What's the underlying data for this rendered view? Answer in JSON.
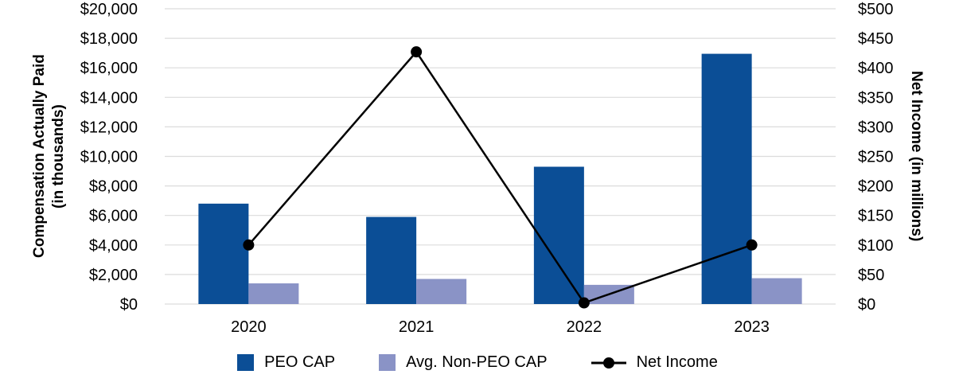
{
  "chart_data": {
    "type": "bar+line combo",
    "categories": [
      "2020",
      "2021",
      "2022",
      "2023"
    ],
    "series": [
      {
        "name": "PEO CAP",
        "type": "bar",
        "axis": "left",
        "color": "#0b4e96",
        "values": [
          6800,
          5900,
          9300,
          16950
        ]
      },
      {
        "name": "Avg. Non-PEO CAP",
        "type": "bar",
        "axis": "left",
        "color": "#8a93c6",
        "values": [
          1400,
          1700,
          1300,
          1750
        ]
      },
      {
        "name": "Net Income",
        "type": "line",
        "axis": "right",
        "color": "#000000",
        "values": [
          100,
          427,
          2,
          100
        ]
      }
    ],
    "left_axis": {
      "title_line1": "Compensation Actually Paid",
      "title_line2": "(in thousands)",
      "min": 0,
      "max": 20000,
      "step": 2000,
      "tick_labels": [
        "$0",
        "$2,000",
        "$4,000",
        "$6,000",
        "$8,000",
        "$10,000",
        "$12,000",
        "$14,000",
        "$16,000",
        "$18,000",
        "$20,000"
      ]
    },
    "right_axis": {
      "title": "Net Income (in millions)",
      "min": 0,
      "max": 500,
      "step": 50,
      "tick_labels": [
        "$0",
        "$50",
        "$100",
        "$150",
        "$200",
        "$250",
        "$300",
        "$350",
        "$400",
        "$450",
        "$500"
      ]
    },
    "grid": true,
    "gridline_color": "#dcdcdc",
    "legend_position": "bottom"
  }
}
